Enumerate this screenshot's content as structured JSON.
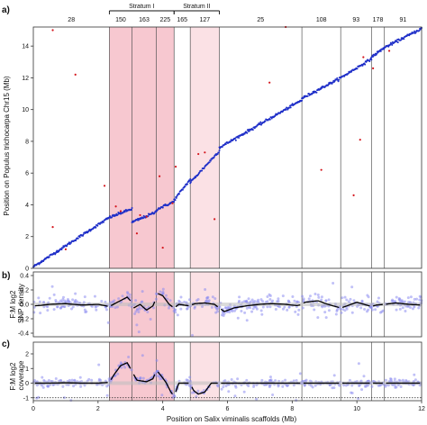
{
  "chart_data": [
    {
      "panel": "a)",
      "type": "scatter",
      "ylabel": "Position on Populus trichocarpa Chr15 (Mb)",
      "xlim": [
        0,
        12
      ],
      "ylim": [
        0,
        15.2
      ],
      "yticks": [
        0,
        2,
        4,
        6,
        8,
        10,
        12,
        14
      ],
      "segment_boundaries": [
        2.35,
        3.05,
        3.8,
        4.35,
        4.85,
        5.75,
        8.3,
        9.5,
        10.45,
        10.85
      ],
      "segment_labels": [
        "28",
        "150",
        "163",
        "225",
        "165",
        "127",
        "25",
        "108",
        "93",
        "178",
        "91"
      ],
      "shaded_regions": [
        {
          "from": 2.35,
          "to": 4.35,
          "group": "Stratum I",
          "color": "#f7c8d0"
        },
        {
          "from": 4.85,
          "to": 5.75,
          "group": "Stratum II",
          "color": "#fbe1e5"
        }
      ],
      "strata": [
        {
          "label": "Stratum I",
          "from": 2.35,
          "to": 4.35
        },
        {
          "label": "Stratum II",
          "from": 4.35,
          "to": 5.75
        }
      ],
      "series": [
        {
          "color": "#1f2fc8",
          "segments": [
            {
              "x": [
                0.0,
                2.35
              ],
              "y": [
                0.1,
                3.2
              ]
            },
            {
              "x": [
                2.35,
                3.05
              ],
              "y": [
                3.2,
                3.75
              ]
            },
            {
              "x": [
                3.05,
                3.8
              ],
              "y": [
                2.9,
                3.55
              ]
            },
            {
              "x": [
                3.8,
                4.35
              ],
              "y": [
                3.7,
                4.2
              ]
            },
            {
              "x": [
                4.35,
                4.85
              ],
              "y": [
                4.3,
                5.6
              ]
            },
            {
              "x": [
                4.85,
                5.75
              ],
              "y": [
                5.4,
                7.4
              ]
            },
            {
              "x": [
                5.75,
                8.3
              ],
              "y": [
                7.6,
                10.6
              ]
            },
            {
              "x": [
                8.3,
                9.5
              ],
              "y": [
                10.7,
                12.0
              ]
            },
            {
              "x": [
                9.5,
                10.45
              ],
              "y": [
                12.0,
                13.2
              ]
            },
            {
              "x": [
                10.45,
                10.85
              ],
              "y": [
                13.3,
                13.9
              ]
            },
            {
              "x": [
                10.85,
                12.0
              ],
              "y": [
                13.9,
                15.1
              ]
            }
          ]
        },
        {
          "color": "#d4161d",
          "points": [
            [
              0.6,
              15.0
            ],
            [
              1.3,
              12.2
            ],
            [
              0.6,
              2.6
            ],
            [
              1.0,
              1.2
            ],
            [
              2.2,
              5.2
            ],
            [
              2.55,
              3.9
            ],
            [
              2.7,
              3.6
            ],
            [
              3.3,
              3.35
            ],
            [
              3.5,
              3.25
            ],
            [
              3.9,
              5.8
            ],
            [
              4.3,
              4.1
            ],
            [
              4.4,
              6.4
            ],
            [
              5.3,
              7.3
            ],
            [
              5.1,
              7.2
            ],
            [
              5.6,
              3.1
            ],
            [
              7.3,
              11.7
            ],
            [
              7.8,
              15.2
            ],
            [
              8.9,
              6.2
            ],
            [
              9.9,
              4.6
            ],
            [
              10.1,
              8.1
            ],
            [
              10.2,
              13.3
            ],
            [
              10.5,
              12.6
            ],
            [
              11.0,
              13.7
            ],
            [
              3.2,
              2.2
            ],
            [
              4.0,
              1.3
            ]
          ]
        }
      ]
    },
    {
      "panel": "b)",
      "type": "scatter",
      "ylabel": "F:M log2 SNP density",
      "ylabel_lines": [
        "F:M log2",
        "SNP density"
      ],
      "xlim": [
        0,
        12
      ],
      "ylim": [
        -0.45,
        0.45
      ],
      "yticks": [
        -0.4,
        -0.2,
        0.0,
        0.2,
        0.4
      ],
      "ytick_labels": [
        "-0.4",
        "-0.2",
        "0.0",
        "0.2",
        "0.4"
      ],
      "smooth_line": {
        "color": "#000000",
        "x": [
          0.1,
          0.5,
          1.0,
          1.5,
          2.0,
          2.35,
          2.6,
          2.9,
          3.0,
          3.1,
          3.3,
          3.5,
          3.7,
          3.85,
          4.0,
          4.2,
          4.35,
          4.5,
          4.8,
          5.0,
          5.3,
          5.6,
          5.9,
          6.2,
          6.6,
          7.0,
          7.4,
          7.8,
          8.2,
          8.4,
          8.8,
          9.1,
          9.5,
          9.7,
          10.0,
          10.45,
          10.6,
          10.85,
          11.2,
          11.6,
          12.0
        ],
        "y": [
          -0.02,
          0.0,
          0.01,
          -0.01,
          0.0,
          -0.03,
          0.03,
          0.1,
          0.05,
          -0.05,
          0.0,
          -0.08,
          -0.02,
          0.15,
          0.12,
          0.0,
          -0.05,
          0.0,
          -0.02,
          0.01,
          0.02,
          0.0,
          -0.1,
          -0.05,
          -0.02,
          0.0,
          0.01,
          0.0,
          -0.02,
          0.03,
          0.05,
          0.0,
          -0.05,
          -0.02,
          0.03,
          -0.03,
          -0.01,
          0.0,
          0.02,
          0.0,
          -0.01
        ]
      },
      "scatter_color": "#8c8cf0"
    },
    {
      "panel": "c)",
      "type": "scatter",
      "ylabel": "F:M log2 coverage",
      "ylabel_lines": [
        "F:M log2",
        "coverage"
      ],
      "xlabel": "Position on Salix viminalis scaffolds (Mb)",
      "xlim": [
        0,
        12
      ],
      "ylim": [
        -1.2,
        2.8
      ],
      "yticks": [
        -1,
        0,
        1,
        2
      ],
      "xticks": [
        0,
        2,
        4,
        6,
        8,
        10,
        12
      ],
      "reference_line_dotted": -1.0,
      "smooth_line": {
        "color": "#000000",
        "x": [
          0.1,
          0.5,
          1.0,
          1.5,
          2.0,
          2.35,
          2.5,
          2.7,
          2.9,
          3.05,
          3.2,
          3.5,
          3.7,
          3.8,
          3.95,
          4.1,
          4.25,
          4.35,
          4.5,
          4.85,
          4.95,
          5.1,
          5.3,
          5.5,
          5.75,
          6.5,
          7.5,
          8.3,
          9.0,
          9.5,
          10.0,
          10.45,
          11.0,
          12.0
        ],
        "y": [
          0.0,
          0.0,
          0.02,
          0.0,
          0.0,
          0.05,
          0.6,
          1.2,
          1.4,
          0.8,
          0.2,
          0.1,
          0.3,
          0.9,
          0.5,
          0.05,
          -0.6,
          -0.9,
          0.0,
          0.0,
          -0.5,
          -0.75,
          -0.6,
          0.0,
          0.0,
          0.0,
          0.0,
          0.0,
          0.0,
          0.0,
          0.0,
          0.0,
          0.0,
          0.0
        ]
      },
      "scatter_color": "#8c8cf0"
    }
  ]
}
